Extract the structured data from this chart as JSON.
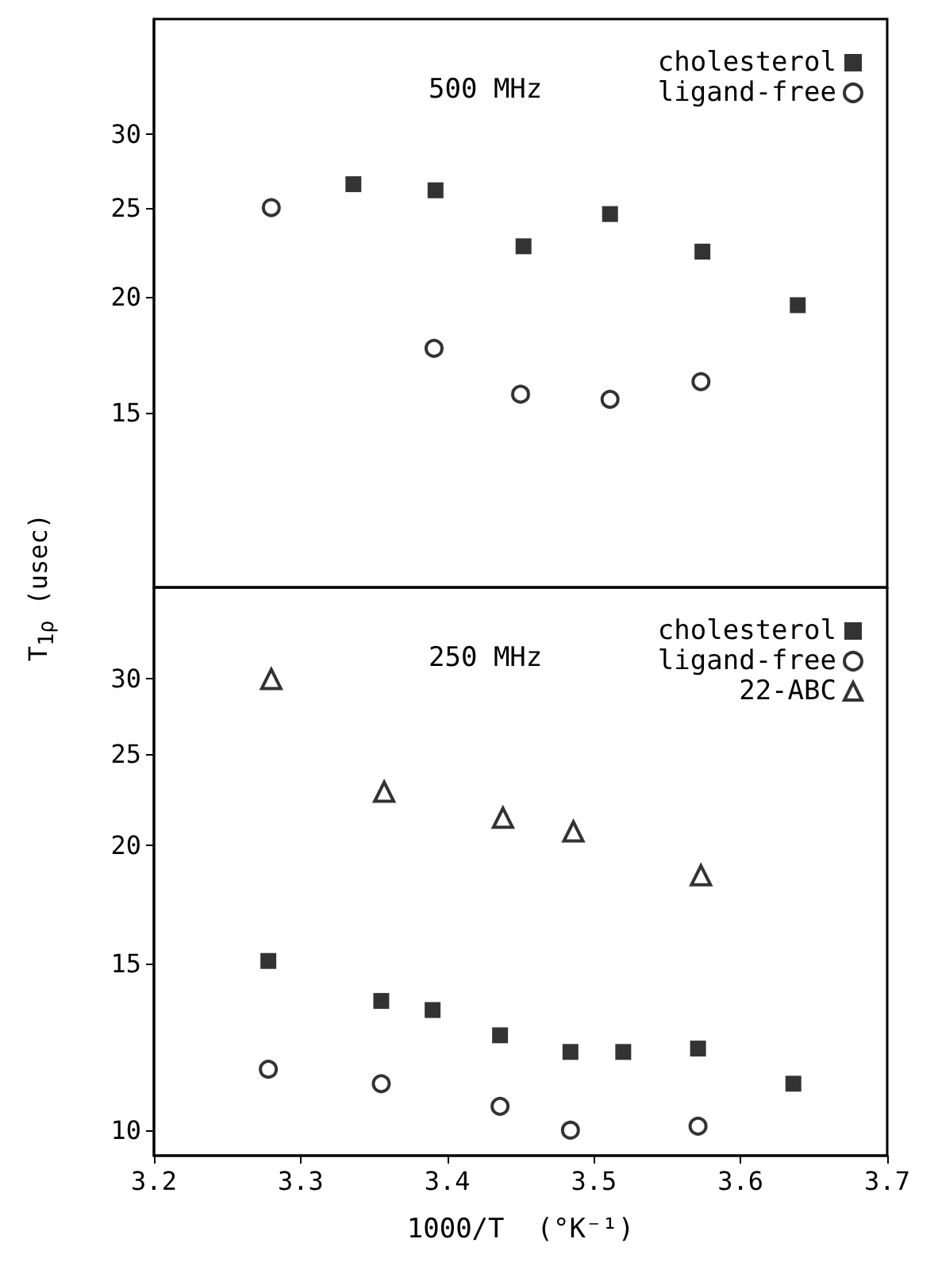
{
  "chart_data": [
    {
      "type": "scatter",
      "ylabel": "T$_{1ρ}$ (usec)",
      "annotations": [
        "500 MHz"
      ],
      "log": true,
      "grid": false,
      "legend": "top right",
      "tick_labels": "y",
      "xlim": [
        3.2,
        3.7
      ],
      "ylim": [
        9.7,
        40
      ],
      "yticks": [
        15,
        20,
        25,
        30
      ],
      "series": [
        {
          "name": "cholesterol",
          "color": "#000000",
          "marker": "square",
          "x": [
            3.336,
            3.392,
            3.452,
            3.511,
            3.574,
            3.639
          ],
          "values": [
            26.5,
            26.1,
            22.7,
            24.6,
            22.4,
            19.6
          ]
        },
        {
          "name": "ligand-free",
          "color": "#000000",
          "marker": "circle",
          "x": [
            3.28,
            3.391,
            3.45,
            3.511,
            3.573
          ],
          "values": [
            25.0,
            17.6,
            15.7,
            15.5,
            16.2
          ]
        }
      ]
    },
    {
      "type": "scatter",
      "xlabel": "1000/T  (°K⁻¹)",
      "annotations": [
        "250 MHz"
      ],
      "log": true,
      "grid": false,
      "legend": "top right",
      "xlim": [
        3.2,
        3.7
      ],
      "xticks": [
        3.2,
        3.3,
        3.4,
        3.5,
        3.6,
        3.7
      ],
      "ylim": [
        9.4,
        37.5
      ],
      "yticks": [
        10,
        15,
        20,
        25,
        30
      ],
      "series": [
        {
          "name": "cholesterol",
          "color": "#000000",
          "marker": "square",
          "x": [
            3.278,
            3.355,
            3.39,
            3.436,
            3.484,
            3.52,
            3.571,
            3.636
          ],
          "values": [
            15.1,
            13.7,
            13.4,
            12.6,
            12.1,
            12.1,
            12.2,
            11.2
          ]
        },
        {
          "name": "ligand-free",
          "color": "#000000",
          "marker": "circle",
          "x": [
            3.278,
            3.355,
            3.436,
            3.484,
            3.571
          ],
          "values": [
            11.6,
            11.2,
            10.6,
            10.0,
            10.1
          ]
        },
        {
          "name": "22-ABC",
          "color": "#000000",
          "marker": "triangle",
          "x": [
            3.28,
            3.357,
            3.438,
            3.486,
            3.573
          ],
          "values": [
            30.0,
            22.8,
            21.4,
            20.7,
            18.6
          ]
        }
      ]
    }
  ]
}
